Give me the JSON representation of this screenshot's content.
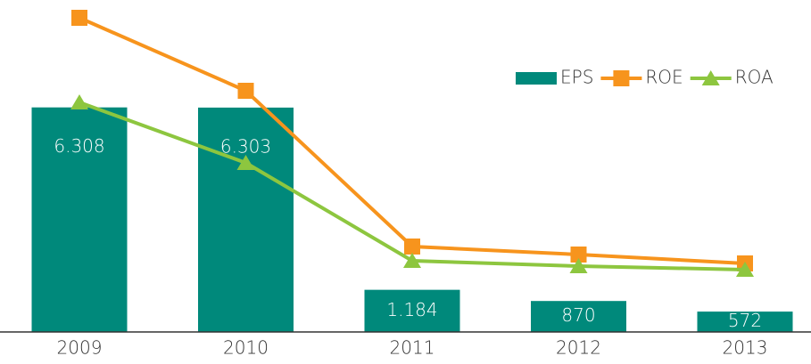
{
  "chart_data": {
    "type": "bar_line",
    "categories": [
      "2009",
      "2010",
      "2011",
      "2012",
      "2013"
    ],
    "series": [
      {
        "name": "EPS",
        "type": "bar",
        "color": "#00897b",
        "values": [
          6308,
          6303,
          1184,
          870,
          572
        ],
        "value_labels": [
          "6.308",
          "6.303",
          "1.184",
          "870",
          "572"
        ]
      },
      {
        "name": "ROE",
        "type": "line",
        "axis": "y2",
        "color": "#f7941d",
        "marker": "square",
        "values": [
          35.3,
          27.1,
          9.6,
          8.7,
          7.7
        ]
      },
      {
        "name": "ROA",
        "type": "line",
        "axis": "y2",
        "color": "#8dc63f",
        "marker": "triangle",
        "values": [
          25.8,
          19.0,
          8.0,
          7.4,
          7.0
        ]
      }
    ],
    "ylim": [
      0,
      9000
    ],
    "y2lim": [
      0,
      36
    ],
    "legend": "top-right"
  }
}
